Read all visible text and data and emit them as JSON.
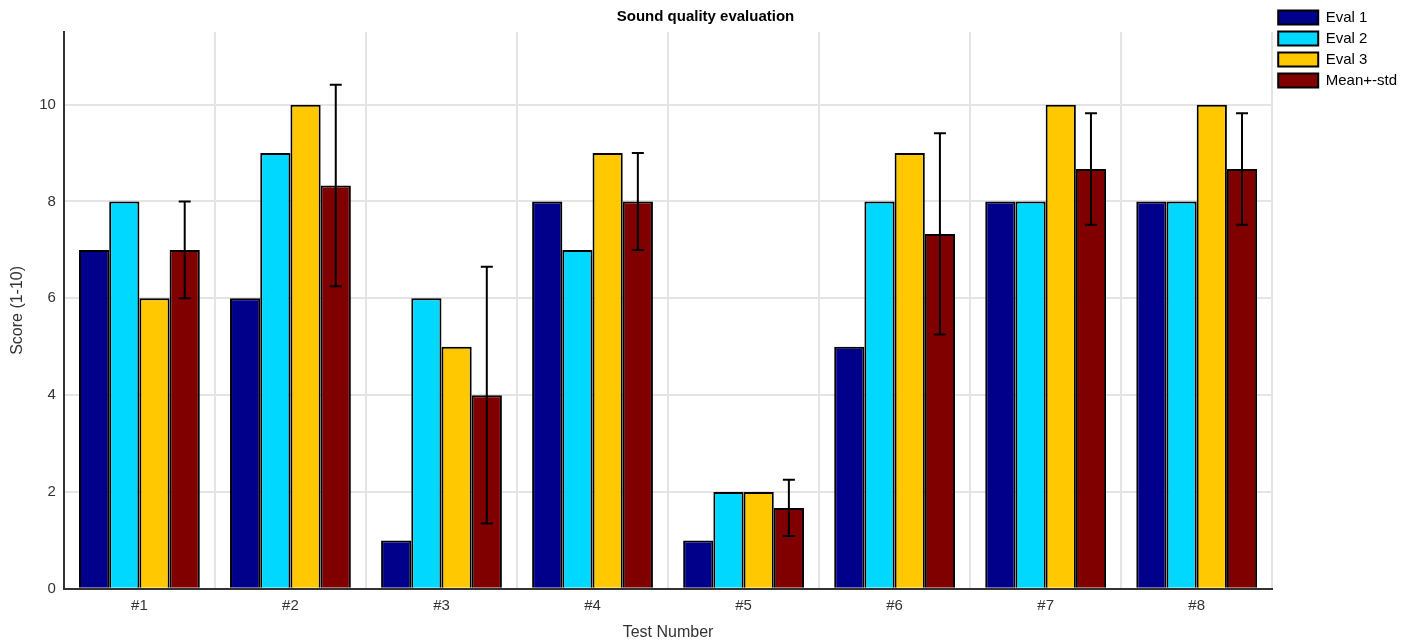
{
  "chart_data": {
    "type": "bar",
    "title": "Sound quality evaluation",
    "xlabel": "Test Number",
    "ylabel": "Score (1-10)",
    "categories": [
      "#1",
      "#2",
      "#3",
      "#4",
      "#5",
      "#6",
      "#7",
      "#8"
    ],
    "series": [
      {
        "name": "Eval 1",
        "color": "#00008b",
        "values": [
          7,
          6,
          1,
          8,
          1,
          5,
          8,
          8
        ]
      },
      {
        "name": "Eval 2",
        "color": "#00d8ff",
        "values": [
          8,
          9,
          6,
          7,
          2,
          8,
          8,
          8
        ]
      },
      {
        "name": "Eval 3",
        "color": "#ffc800",
        "values": [
          6,
          10,
          5,
          9,
          2,
          9,
          10,
          10
        ]
      },
      {
        "name": "Mean+-std",
        "color": "#800000",
        "values": [
          7,
          8.33,
          4,
          8,
          1.67,
          7.33,
          8.67,
          8.67
        ],
        "errors": [
          1,
          2.08,
          2.65,
          1,
          0.58,
          2.08,
          1.15,
          1.15
        ]
      }
    ],
    "ylim": [
      0,
      11.5
    ],
    "yticks": [
      0,
      2,
      4,
      6,
      8,
      10
    ],
    "grid": true,
    "legend": "top right"
  }
}
